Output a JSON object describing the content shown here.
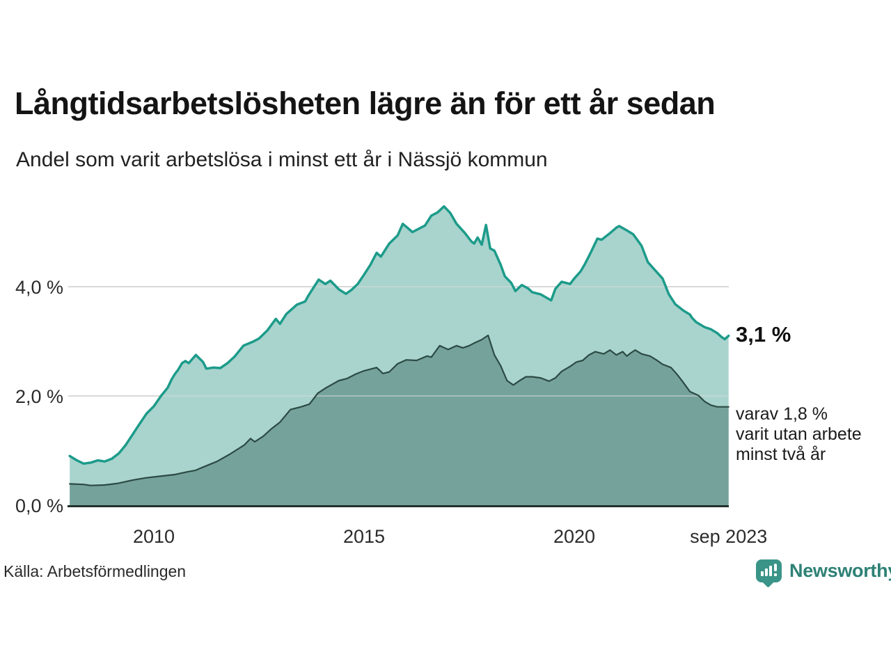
{
  "header": {
    "title": "Långtidsarbetslösheten lägre än för ett år sedan",
    "subtitle": "Andel som varit arbetslösa i minst ett år i Nässjö kommun"
  },
  "annotations": {
    "latest_value": "3,1 %",
    "secondary_note": "varav 1,8 %\nvarit utan arbete\nminst två år"
  },
  "footer": {
    "source": "Källa: Arbetsförmedlingen",
    "brand": "Newsworthy"
  },
  "colors": {
    "grid": "#d9d9d9",
    "axis": "#20302c",
    "brand": "#3a9488",
    "text": "#141414"
  },
  "chart_data": {
    "type": "area",
    "title": "Långtidsarbetslösheten lägre än för ett år sedan",
    "subtitle": "Andel som varit arbetslösa i minst ett år i Nässjö kommun",
    "unit": "%",
    "grid": "horizontal only, at 2,0 % and 4,0 %",
    "legend_position": "end-of-line labels at right",
    "x_axis": {
      "range": [
        2008.0,
        2023.75
      ],
      "ticks": [
        {
          "x": 2010,
          "label": "2010"
        },
        {
          "x": 2015,
          "label": "2015"
        },
        {
          "x": 2020,
          "label": "2020"
        },
        {
          "x": 2023.67,
          "label": "sep 2023"
        }
      ]
    },
    "y_axis": {
      "range": [
        0,
        5.6
      ],
      "ticks": [
        {
          "v": 0,
          "label": "0,0 %",
          "grid": false
        },
        {
          "v": 2,
          "label": "2,0 %",
          "grid": true
        },
        {
          "v": 4,
          "label": "4,0 %",
          "grid": true
        }
      ]
    },
    "series": [
      {
        "id": "minst-ett-ar",
        "name": "Andel arbetslösa minst ett år",
        "end_label": "3,1 %",
        "end_value": 3.1,
        "line_color": "#1d9b8a",
        "fill_color": "#a8d4cd",
        "line_width": 3.5,
        "x": [
          2008.0,
          2008.17,
          2008.33,
          2008.5,
          2008.67,
          2008.83,
          2009.0,
          2009.17,
          2009.33,
          2009.5,
          2009.67,
          2009.83,
          2010.0,
          2010.17,
          2010.33,
          2010.42,
          2010.5,
          2010.58,
          2010.67,
          2010.75,
          2010.83,
          2011.0,
          2011.17,
          2011.25,
          2011.42,
          2011.58,
          2011.75,
          2011.92,
          2012.13,
          2012.35,
          2012.5,
          2012.7,
          2012.9,
          2013.0,
          2013.15,
          2013.4,
          2013.6,
          2013.67,
          2013.92,
          2014.08,
          2014.2,
          2014.4,
          2014.57,
          2014.7,
          2014.85,
          2015.0,
          2015.15,
          2015.3,
          2015.4,
          2015.6,
          2015.8,
          2015.92,
          2016.0,
          2016.15,
          2016.3,
          2016.45,
          2016.6,
          2016.75,
          2016.9,
          2017.05,
          2017.2,
          2017.4,
          2017.55,
          2017.62,
          2017.7,
          2017.8,
          2017.9,
          2018.0,
          2018.1,
          2018.25,
          2018.35,
          2018.5,
          2018.6,
          2018.75,
          2018.9,
          2019.0,
          2019.2,
          2019.45,
          2019.55,
          2019.7,
          2019.9,
          2020.0,
          2020.15,
          2020.25,
          2020.4,
          2020.55,
          2020.65,
          2020.75,
          2020.85,
          2021.0,
          2021.07,
          2021.25,
          2021.4,
          2021.6,
          2021.75,
          2021.9,
          2022.1,
          2022.25,
          2022.4,
          2022.6,
          2022.75,
          2022.8,
          2022.9,
          2023.1,
          2023.25,
          2023.4,
          2023.5,
          2023.58,
          2023.67
        ],
        "values": [
          0.9,
          0.82,
          0.76,
          0.78,
          0.82,
          0.8,
          0.85,
          0.95,
          1.1,
          1.3,
          1.5,
          1.68,
          1.81,
          2.0,
          2.15,
          2.3,
          2.4,
          2.48,
          2.6,
          2.64,
          2.6,
          2.75,
          2.62,
          2.5,
          2.52,
          2.51,
          2.6,
          2.72,
          2.92,
          2.99,
          3.05,
          3.2,
          3.41,
          3.32,
          3.5,
          3.67,
          3.73,
          3.83,
          4.13,
          4.05,
          4.11,
          3.95,
          3.87,
          3.94,
          4.05,
          4.22,
          4.4,
          4.62,
          4.55,
          4.79,
          4.94,
          5.15,
          5.1,
          5.0,
          5.06,
          5.12,
          5.3,
          5.36,
          5.47,
          5.35,
          5.15,
          4.98,
          4.83,
          4.79,
          4.9,
          4.77,
          5.13,
          4.7,
          4.66,
          4.4,
          4.19,
          4.07,
          3.92,
          4.03,
          3.97,
          3.9,
          3.86,
          3.75,
          3.96,
          4.09,
          4.05,
          4.15,
          4.28,
          4.41,
          4.64,
          4.88,
          4.86,
          4.92,
          4.98,
          5.08,
          5.11,
          5.03,
          4.96,
          4.75,
          4.45,
          4.32,
          4.15,
          3.86,
          3.68,
          3.56,
          3.49,
          3.43,
          3.35,
          3.26,
          3.22,
          3.15,
          3.08,
          3.04,
          3.1
        ]
      },
      {
        "id": "minst-tva-ar",
        "name": "varav utan arbete minst två år",
        "end_label": "varav 1,8 % varit utan arbete minst två år",
        "end_value": 1.8,
        "line_color": "#2d4a44",
        "fill_color": "#75a39c",
        "line_width": 2.2,
        "x": [
          2008.0,
          2008.33,
          2008.5,
          2008.83,
          2009.15,
          2009.5,
          2009.8,
          2010.15,
          2010.5,
          2010.8,
          2011.0,
          2011.15,
          2011.5,
          2011.8,
          2012.15,
          2012.3,
          2012.4,
          2012.6,
          2012.8,
          2013.0,
          2013.25,
          2013.5,
          2013.7,
          2013.9,
          2014.1,
          2014.4,
          2014.6,
          2014.8,
          2015.0,
          2015.3,
          2015.45,
          2015.6,
          2015.8,
          2016.0,
          2016.25,
          2016.5,
          2016.6,
          2016.8,
          2017.0,
          2017.2,
          2017.35,
          2017.5,
          2017.65,
          2017.8,
          2017.95,
          2018.1,
          2018.25,
          2018.4,
          2018.55,
          2018.7,
          2018.85,
          2019.0,
          2019.2,
          2019.4,
          2019.55,
          2019.7,
          2019.9,
          2020.05,
          2020.2,
          2020.35,
          2020.5,
          2020.7,
          2020.85,
          2021.0,
          2021.15,
          2021.25,
          2021.35,
          2021.45,
          2021.6,
          2021.8,
          2021.95,
          2022.1,
          2022.3,
          2022.45,
          2022.6,
          2022.75,
          2022.95,
          2023.1,
          2023.25,
          2023.4,
          2023.67
        ],
        "values": [
          0.39,
          0.38,
          0.36,
          0.37,
          0.4,
          0.46,
          0.5,
          0.53,
          0.56,
          0.61,
          0.64,
          0.69,
          0.8,
          0.93,
          1.1,
          1.22,
          1.16,
          1.26,
          1.4,
          1.52,
          1.75,
          1.8,
          1.85,
          2.05,
          2.15,
          2.28,
          2.32,
          2.4,
          2.46,
          2.52,
          2.41,
          2.44,
          2.59,
          2.66,
          2.65,
          2.73,
          2.71,
          2.92,
          2.85,
          2.92,
          2.88,
          2.92,
          2.98,
          3.03,
          3.11,
          2.75,
          2.55,
          2.28,
          2.2,
          2.28,
          2.35,
          2.35,
          2.33,
          2.27,
          2.33,
          2.45,
          2.54,
          2.62,
          2.65,
          2.75,
          2.81,
          2.77,
          2.84,
          2.75,
          2.81,
          2.73,
          2.79,
          2.84,
          2.77,
          2.73,
          2.66,
          2.58,
          2.52,
          2.39,
          2.24,
          2.08,
          2.01,
          1.9,
          1.83,
          1.8,
          1.8
        ]
      }
    ]
  }
}
